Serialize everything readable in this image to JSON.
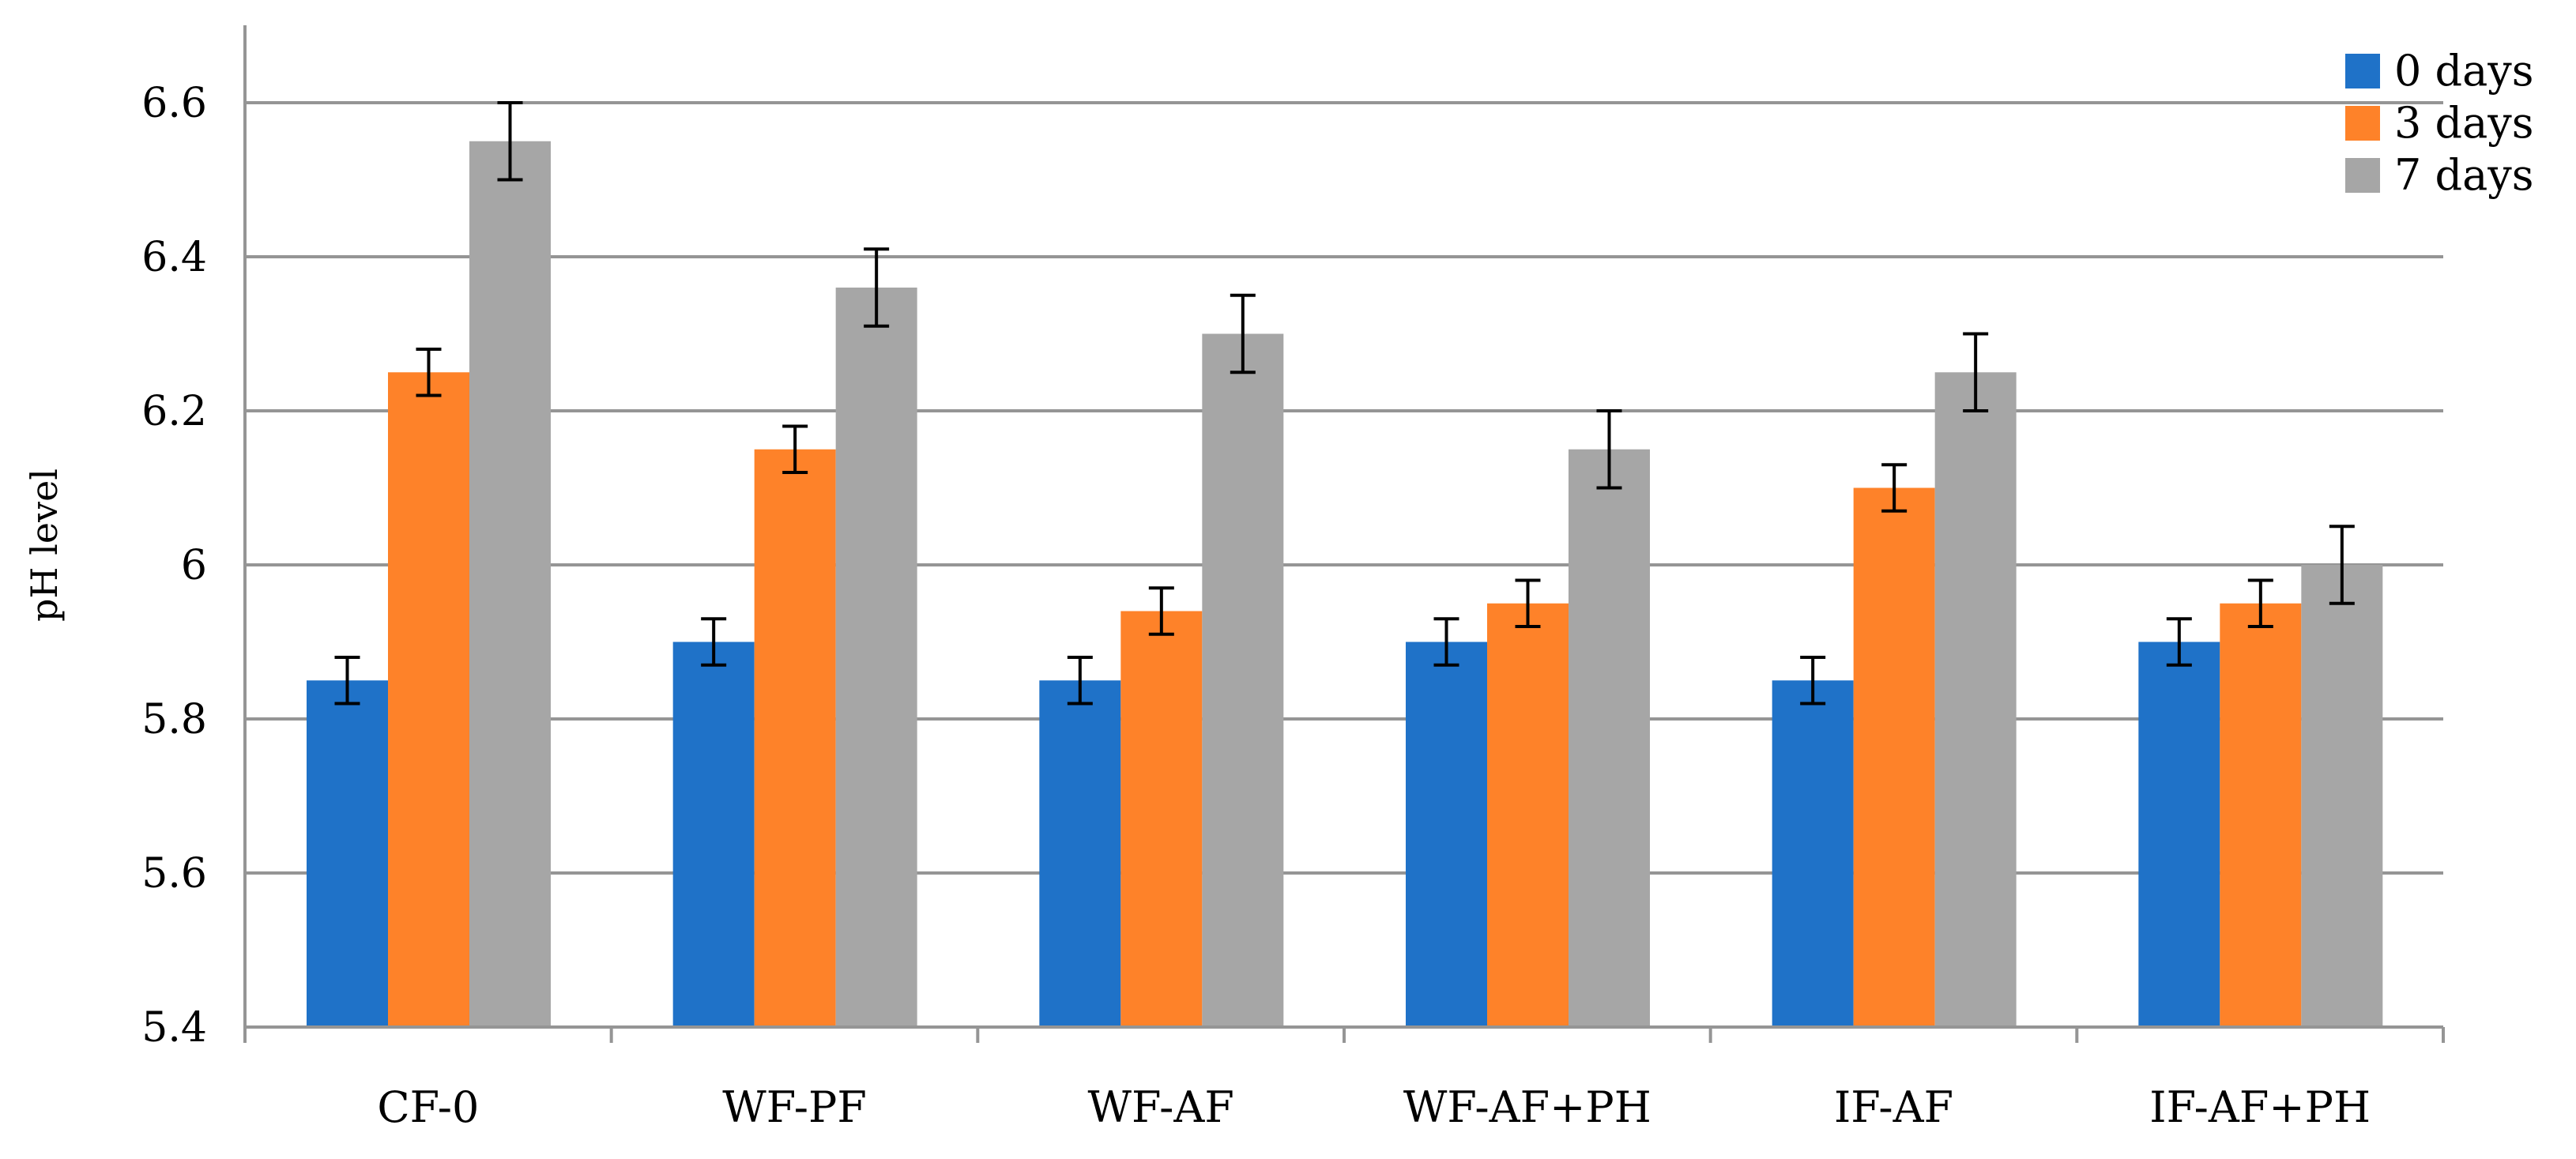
{
  "chart_data": {
    "type": "bar",
    "title": "",
    "xlabel": "",
    "ylabel": "pH level",
    "ylim": [
      5.4,
      6.7
    ],
    "yticks": [
      "5.4",
      "5.6",
      "5.8",
      "6",
      "6.2",
      "6.4",
      "6.6"
    ],
    "categories": [
      "CF-0",
      "WF-PF",
      "WF-AF",
      "WF-AF+PH",
      "IF-AF",
      "IF-AF+PH"
    ],
    "series": [
      {
        "name": "0 days",
        "color": "#1f72c8",
        "values": [
          5.85,
          5.9,
          5.85,
          5.9,
          5.85,
          5.9
        ],
        "errors": [
          0.03,
          0.03,
          0.03,
          0.03,
          0.03,
          0.03
        ]
      },
      {
        "name": "3 days",
        "color": "#fe8229",
        "values": [
          6.25,
          6.15,
          5.94,
          5.95,
          6.1,
          5.95
        ],
        "errors": [
          0.03,
          0.03,
          0.03,
          0.03,
          0.03,
          0.03
        ]
      },
      {
        "name": "7 days",
        "color": "#a6a6a6",
        "values": [
          6.55,
          6.36,
          6.3,
          6.15,
          6.25,
          6.0
        ],
        "errors": [
          0.05,
          0.05,
          0.05,
          0.05,
          0.05,
          0.05
        ]
      }
    ],
    "grid": true,
    "gridColor": "#959595",
    "legend": "top-right"
  }
}
